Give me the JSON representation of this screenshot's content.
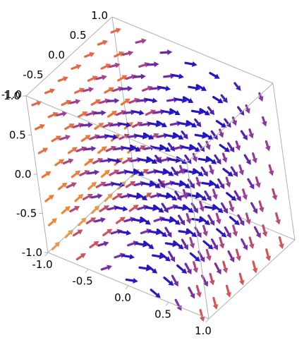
{
  "chart_data": {
    "type": "vector-field-3d",
    "title": "",
    "x_range": [
      -1,
      1
    ],
    "y_range": [
      -1,
      1
    ],
    "z_range": [
      -1,
      1
    ],
    "x_ticks": [
      "-1.0",
      "-0.5",
      "0.0",
      "0.5",
      "1.0"
    ],
    "y_ticks": [
      "-1.0",
      "-0.5",
      "0.0",
      "0.5",
      "1.0"
    ],
    "z_ticks": [
      "-1.0",
      "-0.5",
      "0.0",
      "0.5",
      "1.0"
    ],
    "grid": false,
    "colormap": [
      "#1a12c8",
      "#6a2aa8",
      "#9a3c9a",
      "#d8584e",
      "#f07838",
      "#f8a020",
      "#ffc818"
    ],
    "samples_per_axis": 7
  }
}
